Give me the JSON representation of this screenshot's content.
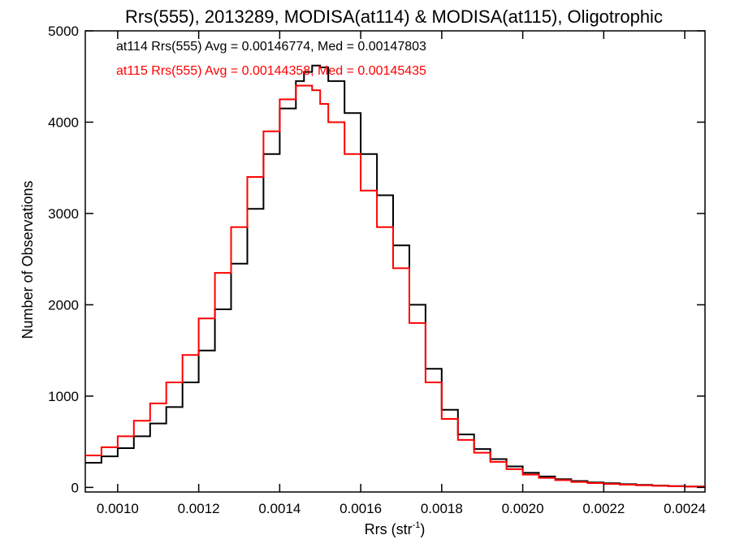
{
  "chart_data": {
    "type": "line",
    "title": "Rrs(555), 2013289, MODISA(at114) & MODISA(at115), Oligotrophic",
    "xlabel_main": "Rrs (str",
    "xlabel_sup": "-1",
    "xlabel_close": ")",
    "ylabel": "Number of Observations",
    "xlim": [
      0.00092,
      0.00245
    ],
    "ylim": [
      -50,
      5000
    ],
    "xticks": [
      0.001,
      0.0012,
      0.0014,
      0.0016,
      0.0018,
      0.002,
      0.0022,
      0.0024
    ],
    "xtick_labels": [
      "0.0010",
      "0.0012",
      "0.0014",
      "0.0016",
      "0.0018",
      "0.0020",
      "0.0022",
      "0.0024"
    ],
    "yticks": [
      0,
      1000,
      2000,
      3000,
      4000,
      5000
    ],
    "ytick_labels": [
      "0",
      "1000",
      "2000",
      "3000",
      "4000",
      "5000"
    ],
    "legend": [
      {
        "text": "at114 Rrs(555) Avg = 0.00146774, Med = 0.00147803",
        "color": "#000000"
      },
      {
        "text": "at115 Rrs(555) Avg = 0.00144358, Med = 0.00145435",
        "color": "#ff0000"
      }
    ],
    "series": [
      {
        "color": "#000000",
        "x": [
          0.00092,
          0.00096,
          0.001,
          0.00104,
          0.00108,
          0.00112,
          0.00116,
          0.0012,
          0.00124,
          0.00128,
          0.00132,
          0.00136,
          0.0014,
          0.00144,
          0.00146,
          0.00148,
          0.0015,
          0.00152,
          0.00156,
          0.0016,
          0.00164,
          0.00168,
          0.00172,
          0.00176,
          0.0018,
          0.00184,
          0.00188,
          0.00192,
          0.00196,
          0.002,
          0.00204,
          0.00208,
          0.00212,
          0.00216,
          0.0022,
          0.00224,
          0.00228,
          0.00232,
          0.00236,
          0.0024,
          0.00245
        ],
        "y": [
          270,
          340,
          430,
          560,
          700,
          880,
          1150,
          1500,
          1950,
          2450,
          3050,
          3650,
          4150,
          4450,
          4550,
          4620,
          4600,
          4450,
          4100,
          3650,
          3200,
          2650,
          2000,
          1300,
          850,
          580,
          420,
          310,
          230,
          160,
          120,
          90,
          70,
          55,
          45,
          35,
          28,
          20,
          15,
          10,
          5
        ]
      },
      {
        "color": "#ff0000",
        "x": [
          0.00092,
          0.00096,
          0.001,
          0.00104,
          0.00108,
          0.00112,
          0.00116,
          0.0012,
          0.00124,
          0.00128,
          0.00132,
          0.00136,
          0.0014,
          0.00144,
          0.00146,
          0.00148,
          0.0015,
          0.00152,
          0.00156,
          0.0016,
          0.00164,
          0.00168,
          0.00172,
          0.00176,
          0.0018,
          0.00184,
          0.00188,
          0.00192,
          0.00196,
          0.002,
          0.00204,
          0.00208,
          0.00212,
          0.00216,
          0.0022,
          0.00224,
          0.00228,
          0.00232,
          0.00236,
          0.0024,
          0.00245
        ],
        "y": [
          350,
          440,
          560,
          730,
          920,
          1150,
          1450,
          1850,
          2350,
          2850,
          3400,
          3900,
          4250,
          4400,
          4400,
          4350,
          4200,
          4000,
          3650,
          3250,
          2850,
          2400,
          1800,
          1150,
          750,
          520,
          380,
          280,
          200,
          140,
          105,
          80,
          60,
          48,
          38,
          30,
          24,
          18,
          13,
          9,
          5
        ]
      }
    ]
  }
}
